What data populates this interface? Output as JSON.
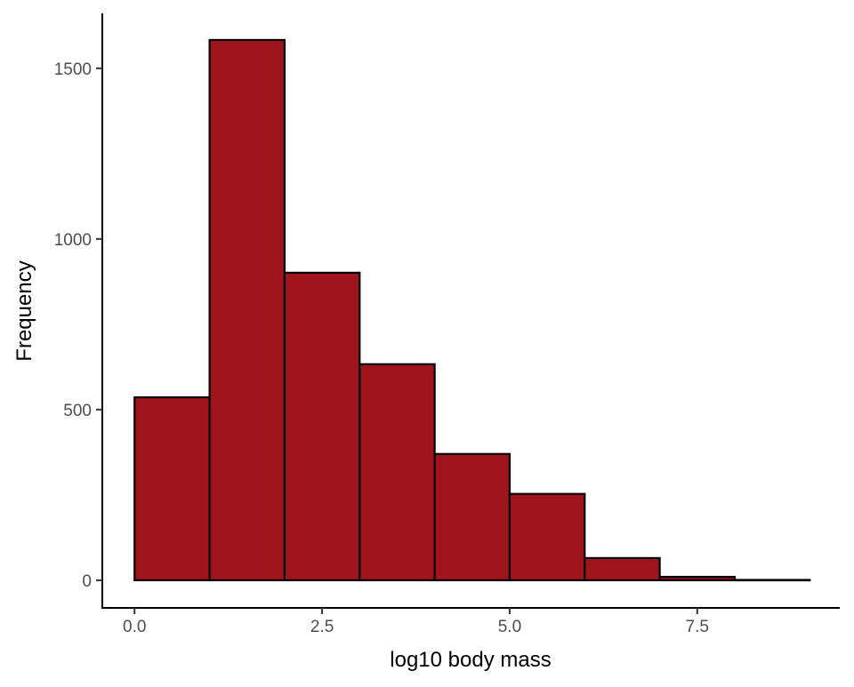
{
  "chart_data": {
    "type": "bar",
    "subtype": "histogram",
    "title": "",
    "xlabel": "log10 body mass",
    "ylabel": "Frequency",
    "bin_edges": [
      0,
      1,
      2,
      3,
      4,
      5,
      6,
      7,
      8,
      9
    ],
    "values": [
      536,
      1583,
      901,
      633,
      370,
      253,
      65,
      10,
      1
    ],
    "xticks": [
      0,
      2.5,
      5,
      7.5
    ],
    "xtick_labels": [
      "0.0",
      "2.5",
      "5.0",
      "7.5"
    ],
    "yticks": [
      0,
      500,
      1000,
      1500
    ],
    "ytick_labels": [
      "0",
      "500",
      "1000",
      "1500"
    ],
    "xlim": [
      -0.43,
      9.4
    ],
    "ylim": [
      -81,
      1661
    ],
    "grid": false,
    "legend": "none",
    "colors": {
      "fill": "#A0141C",
      "stroke": "#000000"
    }
  }
}
